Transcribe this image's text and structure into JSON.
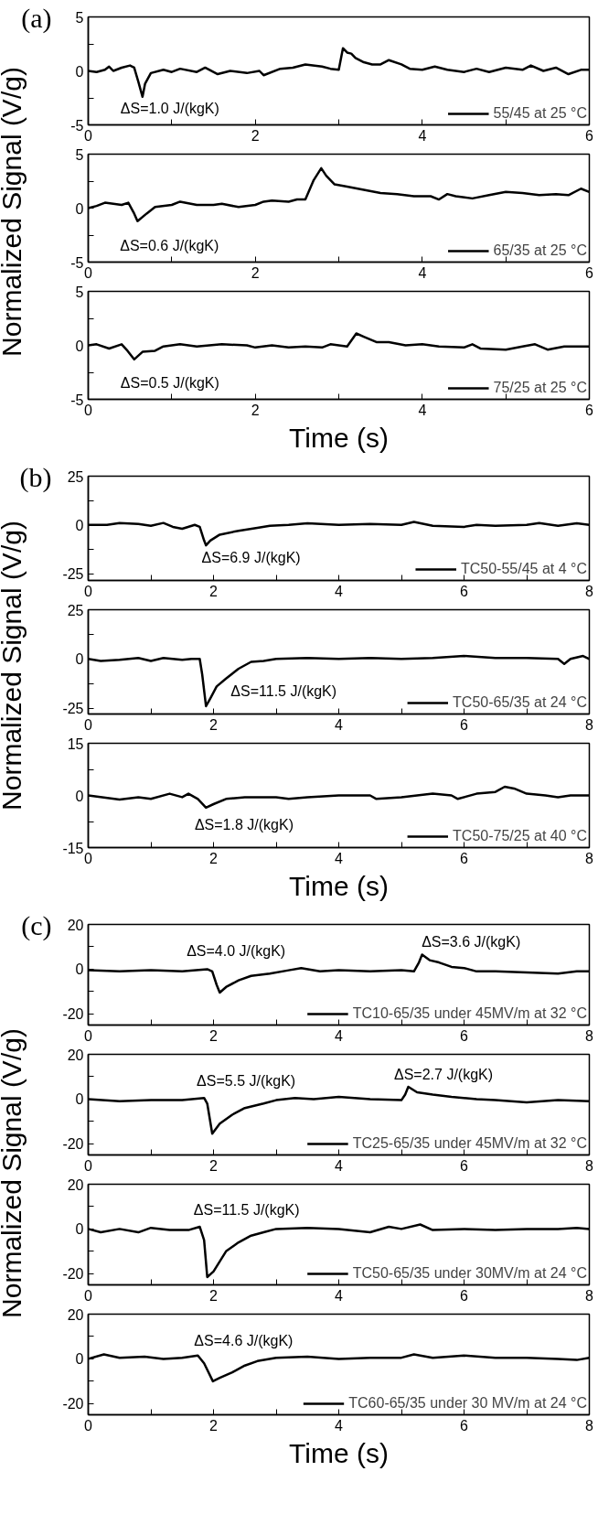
{
  "chart_data": [
    {
      "type": "line",
      "xlim": [
        0,
        6
      ],
      "ylim": [
        -5,
        5
      ],
      "xticks": [
        0,
        {
          "value": 1,
          "label": null
        },
        2,
        {
          "value": 3,
          "label": null
        },
        4,
        {
          "value": 5,
          "label": null
        },
        6
      ],
      "yticks": [
        -5,
        {
          "value": -2.5,
          "label": null
        },
        0,
        {
          "value": 2.5,
          "label": null
        },
        5
      ],
      "grid": false,
      "legend": "bottom right",
      "annotations": [
        "(a)",
        "ΔS=1.0 J/(kgK)"
      ],
      "x": [
        0,
        0.1,
        0.2,
        0.25,
        0.3,
        0.4,
        0.5,
        0.55,
        0.6,
        0.65,
        0.68,
        0.75,
        0.9,
        1.0,
        1.1,
        1.3,
        1.4,
        1.55,
        1.7,
        1.9,
        2.05,
        2.1,
        2.3,
        2.45,
        2.6,
        2.8,
        2.9,
        3.0,
        3.05,
        3.1,
        3.15,
        3.2,
        3.3,
        3.4,
        3.5,
        3.6,
        3.75,
        3.85,
        4.0,
        4.15,
        4.3,
        4.5,
        4.65,
        4.8,
        5.0,
        5.2,
        5.3,
        5.45,
        5.6,
        5.75,
        5.9,
        6.0
      ],
      "series": [
        {
          "name": "55/45 at 25 °C",
          "color": "#000000",
          "values": [
            0,
            -0.1,
            0.1,
            0.4,
            0,
            0.3,
            0.5,
            0.3,
            -1,
            -2.4,
            -1.2,
            -0.2,
            0.1,
            -0.1,
            0.2,
            -0.1,
            0.3,
            -0.3,
            0,
            -0.2,
            0,
            -0.4,
            0.2,
            0.3,
            0.6,
            0.4,
            0.2,
            0.1,
            2.1,
            1.7,
            1.6,
            1.2,
            0.8,
            0.6,
            0.6,
            1.0,
            0.6,
            0.2,
            0.1,
            0.4,
            0.1,
            -0.1,
            0.2,
            -0.1,
            0.3,
            0.1,
            0.5,
            0,
            0.3,
            -0.3,
            0.1,
            0.1
          ]
        }
      ]
    },
    {
      "type": "line",
      "xlim": [
        0,
        6
      ],
      "ylim": [
        -5,
        5
      ],
      "xticks": [
        0,
        {
          "value": 1,
          "label": null
        },
        2,
        {
          "value": 3,
          "label": null
        },
        4,
        {
          "value": 5,
          "label": null
        },
        6
      ],
      "yticks": [
        -5,
        {
          "value": -2.5,
          "label": null
        },
        0,
        {
          "value": 2.5,
          "label": null
        },
        5
      ],
      "grid": false,
      "legend": "bottom right",
      "ylabel": "Normalized Signal (V/g)",
      "annotations": [
        "ΔS=0.6 J/(kgK)"
      ],
      "x": [
        0,
        0.1,
        0.2,
        0.3,
        0.4,
        0.48,
        0.55,
        0.59,
        0.7,
        0.8,
        1.0,
        1.1,
        1.3,
        1.5,
        1.6,
        1.8,
        2.0,
        2.1,
        2.2,
        2.4,
        2.5,
        2.6,
        2.7,
        2.79,
        2.85,
        2.95,
        3.1,
        3.3,
        3.5,
        3.7,
        3.9,
        4.1,
        4.2,
        4.3,
        4.4,
        4.6,
        4.8,
        5.0,
        5.2,
        5.4,
        5.6,
        5.75,
        5.9,
        6.0
      ],
      "series": [
        {
          "name": "65/35 at 25 °C",
          "color": "#000000",
          "values": [
            0,
            0.2,
            0.5,
            0.4,
            0.3,
            0.5,
            -0.5,
            -1.2,
            -0.5,
            0.1,
            0.3,
            0.6,
            0.3,
            0.3,
            0.4,
            0.1,
            0.3,
            0.6,
            0.7,
            0.6,
            0.8,
            0.8,
            2.6,
            3.7,
            3.0,
            2.2,
            2.0,
            1.7,
            1.4,
            1.3,
            1.1,
            1.1,
            0.8,
            1.3,
            1.1,
            0.9,
            1.2,
            1.5,
            1.4,
            1.2,
            1.3,
            1.2,
            1.8,
            1.5
          ]
        }
      ]
    },
    {
      "type": "line",
      "xlim": [
        0,
        6
      ],
      "ylim": [
        -5,
        5
      ],
      "xticks": [
        0,
        {
          "value": 1,
          "label": null
        },
        2,
        {
          "value": 3,
          "label": null
        },
        4,
        {
          "value": 5,
          "label": null
        },
        6
      ],
      "yticks": [
        -5,
        {
          "value": -2.5,
          "label": null
        },
        0,
        {
          "value": 2.5,
          "label": null
        },
        5
      ],
      "grid": false,
      "legend": "bottom right",
      "xlabel": "Time (s)",
      "annotations": [
        "ΔS=0.5 J/(kgK)"
      ],
      "x": [
        0,
        0.1,
        0.25,
        0.4,
        0.47,
        0.55,
        0.65,
        0.8,
        0.9,
        1.1,
        1.3,
        1.6,
        1.9,
        2.0,
        2.2,
        2.4,
        2.6,
        2.8,
        2.9,
        3.1,
        3.21,
        3.3,
        3.45,
        3.6,
        3.8,
        4.0,
        4.2,
        4.5,
        4.6,
        4.7,
        5.0,
        5.2,
        5.35,
        5.5,
        5.7,
        6.0
      ],
      "series": [
        {
          "name": "75/25 at 25 °C",
          "color": "#000000",
          "values": [
            0,
            0.1,
            -0.3,
            0.1,
            -0.5,
            -1.3,
            -0.6,
            -0.5,
            -0.1,
            0.1,
            -0.1,
            0.1,
            0,
            -0.2,
            0,
            -0.2,
            -0.1,
            -0.2,
            0.1,
            -0.1,
            1.1,
            0.8,
            0.3,
            0.3,
            0,
            0.1,
            -0.1,
            -0.2,
            0.1,
            -0.3,
            -0.4,
            -0.1,
            0.1,
            -0.4,
            -0.1,
            -0.1
          ]
        }
      ]
    },
    {
      "type": "line",
      "xlim": [
        0,
        8
      ],
      "ylim": [
        -28.5,
        25
      ],
      "xticks": [
        0,
        {
          "value": 1,
          "label": null
        },
        2,
        {
          "value": 3,
          "label": null
        },
        4,
        {
          "value": 5,
          "label": null
        },
        6,
        {
          "value": 7,
          "label": null
        },
        8
      ],
      "yticks": [
        -25,
        {
          "value": -12.5,
          "label": null
        },
        0,
        {
          "value": 12.5,
          "label": null
        },
        25
      ],
      "grid": false,
      "legend": "bottom right",
      "annotations": [
        "(b)",
        "ΔS=6.9 J/(kgK)"
      ],
      "x": [
        0,
        0.3,
        0.5,
        0.8,
        1.0,
        1.2,
        1.35,
        1.5,
        1.7,
        1.78,
        1.85,
        1.88,
        1.95,
        2.1,
        2.4,
        2.7,
        2.9,
        3.2,
        3.5,
        4.0,
        4.5,
        5.0,
        5.2,
        5.5,
        6.0,
        6.2,
        6.5,
        7.0,
        7.2,
        7.5,
        7.8,
        8.0
      ],
      "series": [
        {
          "name": "TC50-55/45 at 4 °C",
          "color": "#000000",
          "values": [
            0,
            0,
            1,
            0.5,
            -0.5,
            1,
            -1,
            -2,
            0,
            -1,
            -8,
            -10.5,
            -8,
            -5,
            -3,
            -1.5,
            -0.5,
            0,
            0.8,
            0,
            0.5,
            0,
            1.5,
            -0.5,
            -1,
            0,
            -0.5,
            0,
            1,
            -0.5,
            0.8,
            0
          ]
        }
      ]
    },
    {
      "type": "line",
      "xlim": [
        0,
        8
      ],
      "ylim": [
        -28,
        25
      ],
      "xticks": [
        0,
        {
          "value": 1,
          "label": null
        },
        2,
        {
          "value": 3,
          "label": null
        },
        4,
        {
          "value": 5,
          "label": null
        },
        6,
        {
          "value": 7,
          "label": null
        },
        8
      ],
      "yticks": [
        -25,
        {
          "value": -12.5,
          "label": null
        },
        0,
        {
          "value": 12.5,
          "label": null
        },
        25
      ],
      "grid": false,
      "legend": "bottom right",
      "ylabel": "Normalized Signal (V/g)",
      "annotations": [
        "ΔS=11.5 J/(kgK)"
      ],
      "x": [
        0,
        0.2,
        0.5,
        0.8,
        1.0,
        1.2,
        1.5,
        1.65,
        1.78,
        1.82,
        1.88,
        1.95,
        2.05,
        2.2,
        2.4,
        2.6,
        2.8,
        3.0,
        3.5,
        4.0,
        4.5,
        5.0,
        5.5,
        6.0,
        6.5,
        7.0,
        7.5,
        7.6,
        7.7,
        7.9,
        8.0
      ],
      "series": [
        {
          "name": "TC50-65/35 at 24 °C",
          "color": "#000000",
          "values": [
            0,
            -1,
            -0.5,
            0.5,
            -1,
            0.5,
            -0.5,
            0,
            0,
            -8,
            -24,
            -20,
            -14,
            -10,
            -5,
            -1.5,
            -1,
            0,
            0.5,
            0,
            0.5,
            0,
            0.5,
            1.5,
            0.5,
            0.5,
            0,
            -2.5,
            0,
            1.5,
            0
          ]
        }
      ]
    },
    {
      "type": "line",
      "xlim": [
        0,
        8
      ],
      "ylim": [
        -15,
        15
      ],
      "xticks": [
        0,
        {
          "value": 1,
          "label": null
        },
        2,
        {
          "value": 3,
          "label": null
        },
        4,
        {
          "value": 5,
          "label": null
        },
        6,
        {
          "value": 7,
          "label": null
        },
        8
      ],
      "yticks": [
        -15,
        {
          "value": -7.5,
          "label": null
        },
        0,
        {
          "value": 7.5,
          "label": null
        },
        15
      ],
      "grid": false,
      "legend": "bottom right",
      "xlabel": "Time (s)",
      "annotations": [
        "ΔS=1.8 J/(kgK)"
      ],
      "x": [
        0,
        0.5,
        0.8,
        1.0,
        1.3,
        1.5,
        1.6,
        1.75,
        1.88,
        2.0,
        2.2,
        2.5,
        3.0,
        3.2,
        3.5,
        4.0,
        4.5,
        4.6,
        5.0,
        5.5,
        5.8,
        5.9,
        6.2,
        6.5,
        6.65,
        6.8,
        7.0,
        7.3,
        7.5,
        7.7,
        8.0
      ],
      "series": [
        {
          "name": "TC50-75/25 at 40 °C",
          "color": "#000000",
          "values": [
            0,
            -1.2,
            -0.5,
            -1,
            0.5,
            -0.5,
            0.5,
            -1,
            -3.5,
            -2.5,
            -1,
            -0.5,
            -0.5,
            -1,
            -0.5,
            0,
            0,
            -1,
            -0.5,
            0.5,
            0,
            -1,
            0.5,
            1,
            2.5,
            2,
            0.5,
            0,
            -0.5,
            0,
            0
          ]
        }
      ]
    },
    {
      "type": "line",
      "xlim": [
        0,
        8
      ],
      "ylim": [
        -25,
        20
      ],
      "xticks": [
        0,
        {
          "value": 1,
          "label": null
        },
        2,
        {
          "value": 3,
          "label": null
        },
        4,
        {
          "value": 5,
          "label": null
        },
        6,
        {
          "value": 7,
          "label": null
        },
        8
      ],
      "yticks": [
        -20,
        {
          "value": -10,
          "label": null
        },
        0,
        {
          "value": 10,
          "label": null
        },
        20
      ],
      "grid": false,
      "legend": "bottom right",
      "annotations": [
        "(c)",
        "ΔS=4.0 J/(kgK)",
        "ΔS=3.6 J/(kgK)"
      ],
      "x": [
        0,
        0.5,
        1.0,
        1.5,
        1.9,
        1.98,
        2.05,
        2.1,
        2.2,
        2.4,
        2.6,
        2.9,
        3.2,
        3.4,
        3.7,
        4.0,
        4.5,
        5.0,
        5.2,
        5.28,
        5.33,
        5.45,
        5.6,
        5.8,
        6.0,
        6.2,
        6.5,
        7.0,
        7.5,
        7.8,
        8.0
      ],
      "series": [
        {
          "name": "TC10-65/35 under 45MV/m at 32 °C",
          "color": "#000000",
          "values": [
            -0.5,
            -1,
            -0.5,
            -1,
            0,
            -1,
            -7,
            -10.5,
            -8,
            -5,
            -3,
            -2,
            -0.5,
            0.5,
            -1,
            -0.5,
            -1,
            -0.5,
            -1,
            3,
            6.5,
            4,
            3,
            1,
            0.5,
            -1,
            -1,
            -1.5,
            -2,
            -1,
            -1
          ]
        }
      ]
    },
    {
      "type": "line",
      "xlim": [
        0,
        8
      ],
      "ylim": [
        -25,
        20
      ],
      "xticks": [
        0,
        {
          "value": 1,
          "label": null
        },
        2,
        {
          "value": 3,
          "label": null
        },
        4,
        {
          "value": 5,
          "label": null
        },
        6,
        {
          "value": 7,
          "label": null
        },
        8
      ],
      "yticks": [
        -20,
        {
          "value": -10,
          "label": null
        },
        0,
        {
          "value": 10,
          "label": null
        },
        20
      ],
      "grid": false,
      "legend": "bottom right",
      "annotations": [
        "ΔS=5.5 J/(kgK)",
        "ΔS=2.7 J/(kgK)"
      ],
      "x": [
        0,
        0.5,
        1.0,
        1.5,
        1.85,
        1.9,
        1.98,
        2.1,
        2.3,
        2.5,
        2.8,
        3.0,
        3.3,
        3.6,
        4.0,
        4.5,
        5.0,
        5.06,
        5.11,
        5.25,
        5.5,
        5.8,
        6.2,
        6.5,
        7.0,
        7.5,
        8.0
      ],
      "series": [
        {
          "name": "TC25-65/35 under 45MV/m at 32 °C",
          "color": "#000000",
          "values": [
            0,
            -1,
            -0.5,
            -0.5,
            0.5,
            -2,
            -15.5,
            -11,
            -7,
            -4,
            -2,
            -0.5,
            0.5,
            0,
            1,
            0,
            -0.5,
            2,
            5.5,
            3,
            2,
            1,
            0,
            -0.5,
            -1.5,
            -0.5,
            -1
          ]
        }
      ]
    },
    {
      "type": "line",
      "xlim": [
        0,
        8
      ],
      "ylim": [
        -25,
        20
      ],
      "xticks": [
        0,
        {
          "value": 1,
          "label": null
        },
        2,
        {
          "value": 3,
          "label": null
        },
        4,
        {
          "value": 5,
          "label": null
        },
        6,
        {
          "value": 7,
          "label": null
        },
        8
      ],
      "yticks": [
        -20,
        {
          "value": -10,
          "label": null
        },
        0,
        {
          "value": 10,
          "label": null
        },
        20
      ],
      "grid": false,
      "legend": "bottom right",
      "ylabel": "Normalized Signal (V/g)",
      "annotations": [
        "ΔS=11.5 J/(kgK)"
      ],
      "x": [
        0,
        0.2,
        0.5,
        0.8,
        1.0,
        1.3,
        1.6,
        1.78,
        1.85,
        1.9,
        2.0,
        2.2,
        2.4,
        2.6,
        2.8,
        3.0,
        3.5,
        4.0,
        4.5,
        4.8,
        5.0,
        5.3,
        5.5,
        6.0,
        6.5,
        7.0,
        7.5,
        7.8,
        8.0
      ],
      "series": [
        {
          "name": "TC50-65/35 under 30MV/m at 24 °C",
          "color": "#000000",
          "values": [
            0,
            -1.5,
            0,
            -1.5,
            0.5,
            -0.5,
            -0.5,
            1,
            -5,
            -21.5,
            -19,
            -10,
            -6,
            -3,
            -1.5,
            0,
            0.5,
            0,
            -1.5,
            1,
            0,
            2,
            -0.5,
            0,
            -0.5,
            0,
            0,
            0.5,
            0
          ]
        }
      ]
    },
    {
      "type": "line",
      "xlim": [
        0,
        8
      ],
      "ylim": [
        -25,
        20
      ],
      "xticks": [
        0,
        {
          "value": 1,
          "label": null
        },
        2,
        {
          "value": 3,
          "label": null
        },
        4,
        {
          "value": 5,
          "label": null
        },
        6,
        {
          "value": 7,
          "label": null
        },
        8
      ],
      "yticks": [
        -20,
        {
          "value": -10,
          "label": null
        },
        0,
        {
          "value": 10,
          "label": null
        },
        20
      ],
      "grid": false,
      "legend": "bottom right",
      "xlabel": "Time (s)",
      "annotations": [
        "ΔS=4.6 J/(kgK)"
      ],
      "x": [
        0,
        0.25,
        0.5,
        0.9,
        1.2,
        1.5,
        1.75,
        1.85,
        1.99,
        2.1,
        2.3,
        2.5,
        2.7,
        3.0,
        3.5,
        4.0,
        4.5,
        5.0,
        5.2,
        5.5,
        6.0,
        6.5,
        7.0,
        7.5,
        7.8,
        8.0
      ],
      "series": [
        {
          "name": "TC60-65/35 under 30 MV/m at 24 °C",
          "color": "#000000",
          "values": [
            0,
            2,
            0.5,
            1,
            0,
            0.5,
            1.5,
            -2,
            -10,
            -8.5,
            -6,
            -3,
            -1,
            0.5,
            1,
            0,
            0.5,
            0.5,
            2,
            0.5,
            1.5,
            0.5,
            0.5,
            0,
            -0.5,
            0.5
          ]
        }
      ]
    }
  ]
}
